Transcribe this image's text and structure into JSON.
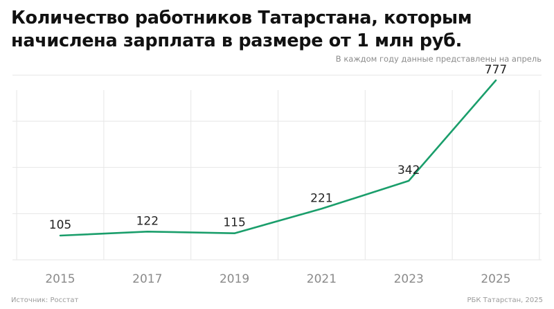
{
  "header": {
    "title_line1": "Количество работников Татарстана, которым",
    "title_line2": "начислена зарплата в размере от 1 млн руб.",
    "subtitle": "В каждом году данные представлены на апрель"
  },
  "footer": {
    "source": "Источник: Росстат",
    "credit": "РБК Татарстан, 2025"
  },
  "colors": {
    "line": "#1a9e6b",
    "grid": "#e6e6e6",
    "tick_label": "#8a8a8a",
    "data_label": "#222222"
  },
  "chart_data": {
    "type": "line",
    "title": "Количество работников Татарстана, которым начислена зарплата в размере от 1 млн руб.",
    "subtitle": "В каждом году данные представлены на апрель",
    "categories": [
      "2015",
      "2017",
      "2019",
      "2021",
      "2023",
      "2025"
    ],
    "series": [
      {
        "values": [
          105,
          122,
          115,
          221,
          342,
          777
        ]
      }
    ],
    "ylim": [
      0,
      900
    ],
    "grid": true,
    "legend": "none"
  }
}
